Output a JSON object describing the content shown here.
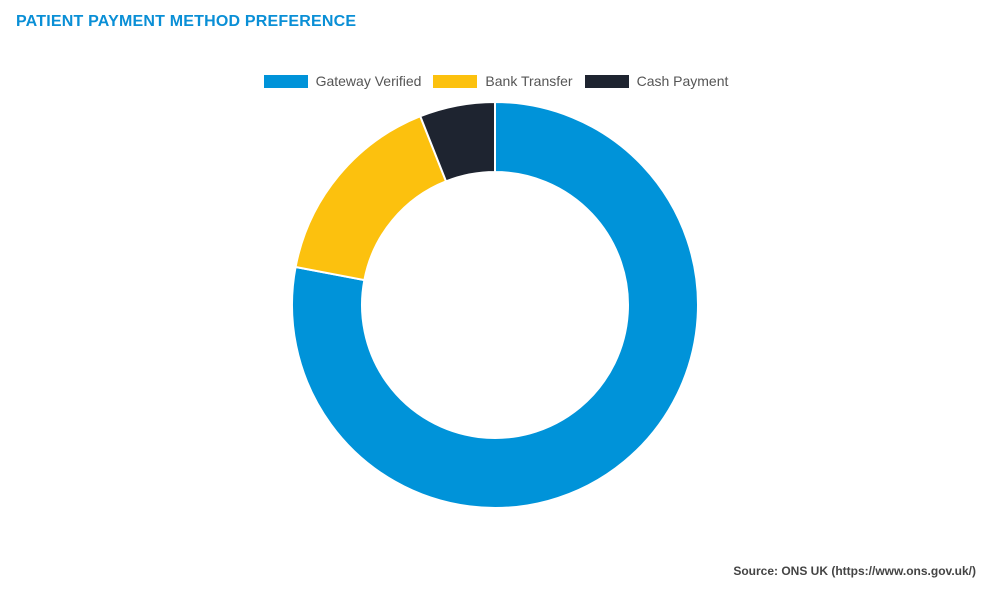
{
  "title": "PATIENT PAYMENT METHOD PREFERENCE",
  "source": "Source: ONS UK (https://www.ons.gov.uk/)",
  "chart_data": {
    "type": "pie",
    "variant": "doughnut",
    "title": "PATIENT PAYMENT METHOD PREFERENCE",
    "legend_position": "top",
    "categories": [
      "Gateway Verified",
      "Bank Transfer",
      "Cash Payment"
    ],
    "values": [
      78,
      16,
      6
    ],
    "unit": "%",
    "colors": [
      "#0093d9",
      "#fcc10e",
      "#1e2430"
    ]
  }
}
